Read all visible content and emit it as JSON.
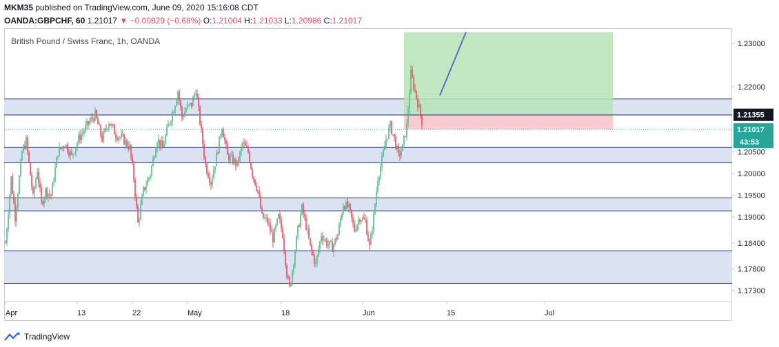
{
  "header": {
    "author": "MKM35",
    "published": "published on TradingView.com, June 09, 2020 15:16:08 CDT",
    "symbol": "OANDA:GBPCHF, 60",
    "last": "1.21017",
    "change": "−0.00829 (−0.68%)",
    "o_label": "O:",
    "o_value": "1.21004",
    "h_label": "H:",
    "h_value": "1.21033",
    "l_label": "L:",
    "l_value": "1.20986",
    "c_label": "C:",
    "c_value": "1.21017"
  },
  "footer": {
    "brand": "TradingView"
  },
  "colors": {
    "up": "#53b987",
    "down": "#eb4d5c",
    "zone_fill": "#dbe3f3",
    "zone_line": "#1e2a6e",
    "target": "#b6e3b6",
    "stop": "#f8c4c8",
    "arrow": "#5b6fc7",
    "price_badge": "#26a69a"
  },
  "chart_data": {
    "type": "candlestick",
    "title": "British Pound / Swiss Franc, 1h, OANDA",
    "y_ticks": [
      "1.23000",
      "1.22000",
      "1.20500",
      "1.20000",
      "1.19500",
      "1.19000",
      "1.18400",
      "1.17800",
      "1.17300"
    ],
    "ylim": [
      1.1705,
      1.2335
    ],
    "x_ticks": [
      "Apr",
      "13",
      "22",
      "May",
      "18",
      "Jun",
      "15",
      "Jul"
    ],
    "last_price_label": "1.21017",
    "level_label": "1.21355",
    "countdown": "43:53",
    "zones": [
      [
        1.2135,
        1.2172
      ],
      [
        1.2025,
        1.206
      ],
      [
        1.1914,
        1.1944
      ],
      [
        1.1747,
        1.1822
      ]
    ],
    "position": {
      "entry": 1.2135,
      "stop": 1.2102,
      "target": 1.2326
    },
    "forecast_line": [
      [
        1.218,
        1.2326
      ]
    ],
    "price_path": [
      [
        0,
        1.184
      ],
      [
        8,
        1.199
      ],
      [
        14,
        1.19
      ],
      [
        24,
        1.205
      ],
      [
        30,
        1.2075
      ],
      [
        40,
        1.1945
      ],
      [
        46,
        1.201
      ],
      [
        52,
        1.193
      ],
      [
        58,
        1.196
      ],
      [
        66,
        1.195
      ],
      [
        76,
        1.205
      ],
      [
        86,
        1.207
      ],
      [
        96,
        1.204
      ],
      [
        106,
        1.208
      ],
      [
        114,
        1.21
      ],
      [
        122,
        1.212
      ],
      [
        130,
        1.2135
      ],
      [
        140,
        1.208
      ],
      [
        150,
        1.212
      ],
      [
        160,
        1.209
      ],
      [
        170,
        1.208
      ],
      [
        180,
        1.206
      ],
      [
        186,
        1.199
      ],
      [
        192,
        1.1885
      ],
      [
        200,
        1.196
      ],
      [
        210,
        1.2
      ],
      [
        220,
        1.208
      ],
      [
        228,
        1.206
      ],
      [
        236,
        1.211
      ],
      [
        244,
        1.215
      ],
      [
        250,
        1.219
      ],
      [
        256,
        1.213
      ],
      [
        262,
        1.215
      ],
      [
        270,
        1.216
      ],
      [
        276,
        1.2195
      ],
      [
        282,
        1.212
      ],
      [
        290,
        1.202
      ],
      [
        298,
        1.198
      ],
      [
        306,
        1.204
      ],
      [
        314,
        1.211
      ],
      [
        322,
        1.204
      ],
      [
        330,
        1.203
      ],
      [
        336,
        1.202
      ],
      [
        344,
        1.207
      ],
      [
        352,
        1.205
      ],
      [
        358,
        1.2
      ],
      [
        366,
        1.196
      ],
      [
        372,
        1.19
      ],
      [
        380,
        1.189
      ],
      [
        388,
        1.185
      ],
      [
        396,
        1.19
      ],
      [
        402,
        1.186
      ],
      [
        408,
        1.177
      ],
      [
        412,
        1.1735
      ],
      [
        418,
        1.18
      ],
      [
        424,
        1.187
      ],
      [
        430,
        1.192
      ],
      [
        436,
        1.188
      ],
      [
        442,
        1.183
      ],
      [
        450,
        1.179
      ],
      [
        458,
        1.186
      ],
      [
        466,
        1.184
      ],
      [
        474,
        1.183
      ],
      [
        482,
        1.186
      ],
      [
        490,
        1.193
      ],
      [
        498,
        1.192
      ],
      [
        506,
        1.187
      ],
      [
        514,
        1.19
      ],
      [
        522,
        1.189
      ],
      [
        528,
        1.183
      ],
      [
        534,
        1.19
      ],
      [
        540,
        1.199
      ],
      [
        546,
        1.203
      ],
      [
        552,
        1.208
      ],
      [
        558,
        1.211
      ],
      [
        564,
        1.208
      ],
      [
        570,
        1.204
      ],
      [
        576,
        1.206
      ],
      [
        582,
        1.211
      ],
      [
        588,
        1.223
      ],
      [
        594,
        1.219
      ],
      [
        600,
        1.215
      ],
      [
        604,
        1.212
      ],
      [
        608,
        1.208
      ],
      [
        612,
        1.21
      ]
    ]
  }
}
